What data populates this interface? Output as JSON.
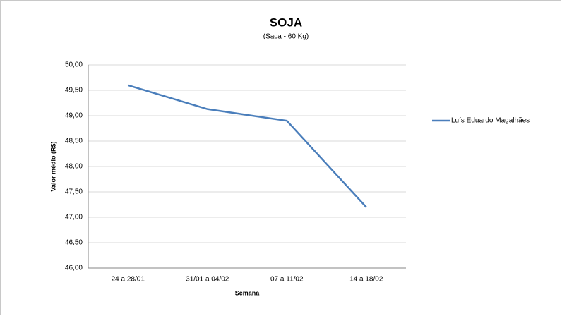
{
  "chart_data": {
    "type": "line",
    "title": "SOJA",
    "subtitle": "(Saca - 60 Kg)",
    "x_label": "Semana",
    "y_label": "Valor médio (R$)",
    "categories": [
      "24 a 28/01",
      "31/01 a 04/02",
      "07 a 11/02",
      "14 a 18/02"
    ],
    "series": [
      {
        "name": "Luís Eduardo Magalhães",
        "color": "#4a7ebb",
        "values": [
          49.6,
          49.13,
          48.9,
          47.2
        ]
      }
    ],
    "ylim": [
      46,
      50
    ],
    "yticks": [
      {
        "value": 46,
        "label": "46,00"
      },
      {
        "value": 46.5,
        "label": "46,50"
      },
      {
        "value": 47,
        "label": "47,00"
      },
      {
        "value": 47.5,
        "label": "47,50"
      },
      {
        "value": 48,
        "label": "48,00"
      },
      {
        "value": 48.5,
        "label": "48,50"
      },
      {
        "value": 49,
        "label": "49,00"
      },
      {
        "value": 49.5,
        "label": "49,50"
      },
      {
        "value": 50,
        "label": "50,00"
      }
    ],
    "grid": true,
    "legend": "right"
  }
}
